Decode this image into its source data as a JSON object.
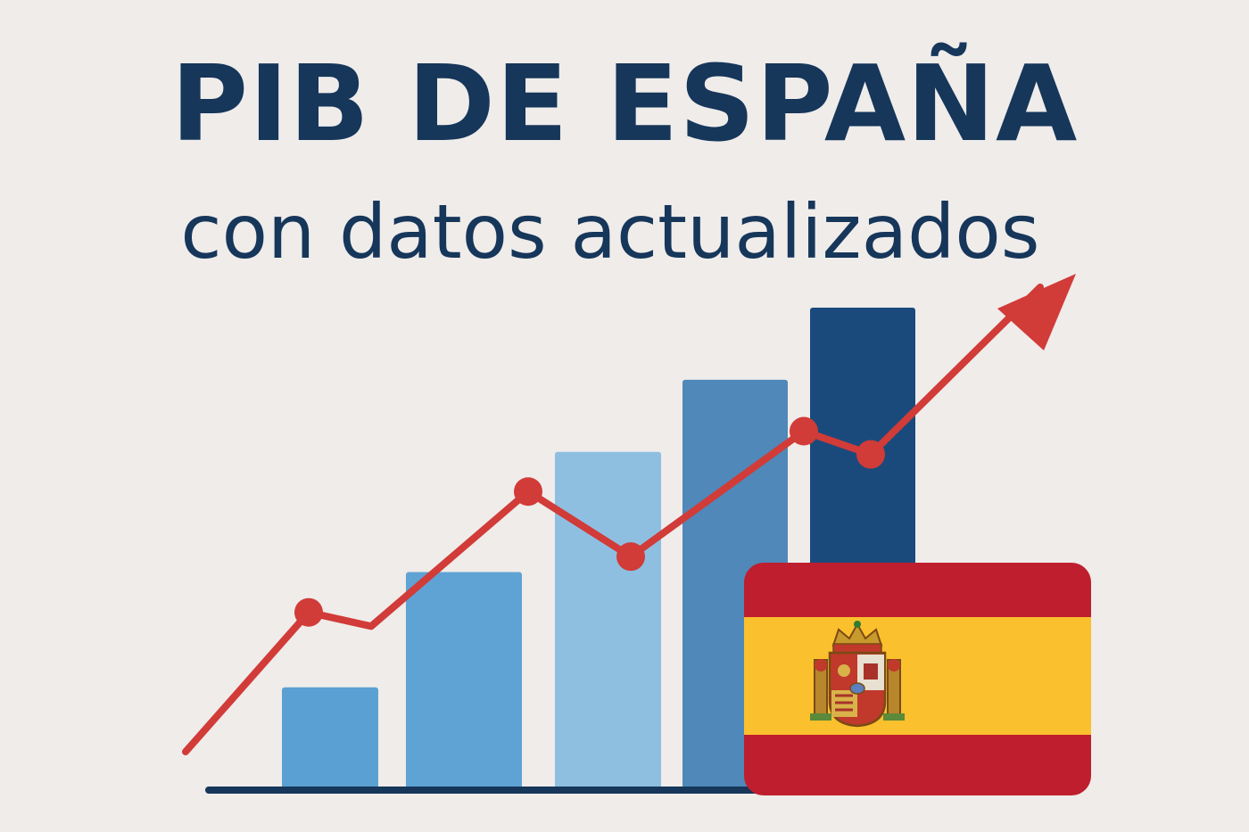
{
  "header": {
    "title": "PIB DE ESPAÑA",
    "subtitle": "con datos actualizados"
  },
  "chart_data": {
    "type": "bar",
    "title": "PIB DE ESPAÑA",
    "subtitle": "con datos actualizados",
    "values": [
      21,
      45,
      70,
      85,
      100
    ],
    "bar_colors": [
      "#5aa0d2",
      "#5fa3d4",
      "#8ebfe1",
      "#4f88b9",
      "#1a4a7c"
    ],
    "line_series": {
      "values": [
        30,
        27,
        56,
        42,
        69,
        64,
        100
      ],
      "color": "#d13b38",
      "arrow": true
    },
    "ylim": [
      0,
      100
    ],
    "grid": false,
    "legend": "none"
  },
  "flag": {
    "icon": "spain-flag-icon",
    "colors": {
      "red": "#be1e2d",
      "yellow": "#fbc02d"
    }
  },
  "colors": {
    "title": "#16365a",
    "background": "#efecea",
    "baseline": "#16365a"
  }
}
